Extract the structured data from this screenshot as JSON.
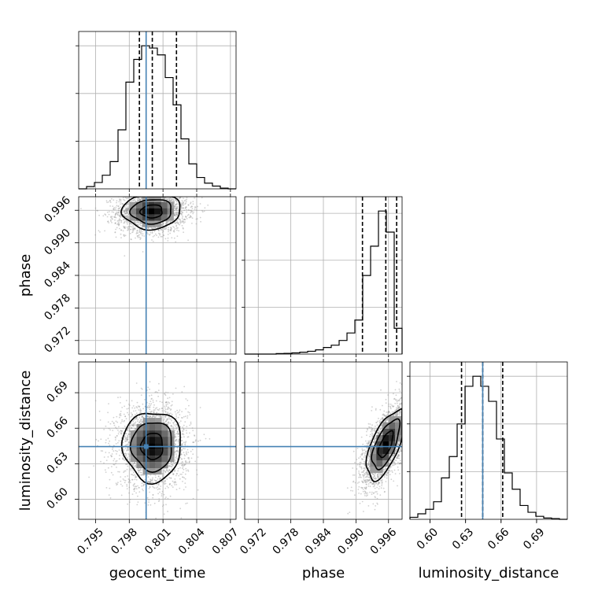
{
  "chart_data": {
    "type": "corner",
    "parameters": [
      "geocent_time",
      "phase",
      "luminosity_distance"
    ],
    "axis_labels": {
      "geocent_time": "geocent_time",
      "phase": "phase",
      "luminosity_distance": "luminosity_distance"
    },
    "truth_color": "#4682b4",
    "truths": {
      "geocent_time": 0.7995,
      "phase": null,
      "luminosity_distance": 0.6445
    },
    "ranges": {
      "geocent_time": [
        0.7935,
        0.8075
      ],
      "phase": [
        0.9695,
        0.9985
      ],
      "luminosity_distance": [
        0.583,
        0.716
      ]
    },
    "ticks": {
      "geocent_time": {
        "values": [
          0.795,
          0.798,
          0.801,
          0.804,
          0.807
        ],
        "labels": [
          "0.795",
          "0.798",
          "0.801",
          "0.804",
          "0.807"
        ]
      },
      "phase": {
        "values": [
          0.972,
          0.978,
          0.984,
          0.99,
          0.996
        ],
        "labels": [
          "0.972",
          "0.978",
          "0.984",
          "0.990",
          "0.996"
        ]
      },
      "luminosity_distance": {
        "values": [
          0.6,
          0.63,
          0.66,
          0.69
        ],
        "labels": [
          "0.60",
          "0.63",
          "0.66",
          "0.69"
        ]
      }
    },
    "grid": true,
    "marginals": [
      {
        "parameter": "geocent_time",
        "quantiles": [
          0.7989,
          0.80005,
          0.8022
        ],
        "bins": [
          0.7935,
          0.7942,
          0.7949,
          0.7956,
          0.7963,
          0.797,
          0.7977,
          0.7984,
          0.7991,
          0.7998,
          0.8005,
          0.8012,
          0.8019,
          0.8026,
          0.8033,
          0.804,
          0.8047,
          0.8054,
          0.8061,
          0.8068,
          0.8075
        ],
        "counts": [
          0,
          10,
          28,
          60,
          120,
          260,
          470,
          570,
          630,
          620,
          590,
          490,
          370,
          220,
          110,
          50,
          25,
          12,
          3,
          0
        ]
      },
      {
        "parameter": "phase",
        "quantiles": [
          0.9912,
          0.9955,
          0.9975
        ],
        "bins": [
          0.9695,
          0.97095,
          0.9724,
          0.97385,
          0.9753,
          0.97675,
          0.9782,
          0.97965,
          0.9811,
          0.98255,
          0.984,
          0.98545,
          0.9869,
          0.98835,
          0.9898,
          0.99125,
          0.9927,
          0.99415,
          0.9956,
          0.99705,
          0.9985
        ],
        "counts": [
          0,
          0,
          0,
          0,
          2,
          3,
          5,
          8,
          12,
          18,
          28,
          38,
          58,
          90,
          145,
          335,
          460,
          610,
          520,
          110
        ]
      },
      {
        "parameter": "luminosity_distance",
        "quantiles": [
          0.6266,
          0.6445,
          0.6614
        ],
        "bins": [
          0.583,
          0.58965,
          0.5963,
          0.60295,
          0.6096,
          0.61625,
          0.6229,
          0.62955,
          0.6362,
          0.64285,
          0.6495,
          0.65615,
          0.6628,
          0.66945,
          0.6761,
          0.68275,
          0.6894,
          0.69605,
          0.7027,
          0.70935,
          0.716
        ],
        "counts": [
          8,
          22,
          40,
          70,
          165,
          250,
          380,
          530,
          570,
          530,
          470,
          320,
          185,
          120,
          55,
          28,
          12,
          5,
          3,
          0
        ]
      }
    ],
    "joints": [
      {
        "x": "geocent_time",
        "y": "phase",
        "samples": 2600,
        "peak": [
          0.8,
          0.9958
        ],
        "spread": [
          0.0013,
          0.0016
        ],
        "corr": 0.05
      },
      {
        "x": "geocent_time",
        "y": "luminosity_distance",
        "samples": 2600,
        "peak": [
          0.80005,
          0.6448
        ],
        "spread": [
          0.0013,
          0.0148
        ],
        "corr": 0.0
      },
      {
        "x": "phase",
        "y": "luminosity_distance",
        "samples": 2600,
        "peak": [
          0.9955,
          0.6462
        ],
        "spread": [
          0.0018,
          0.0148
        ],
        "corr": 0.65
      }
    ]
  }
}
